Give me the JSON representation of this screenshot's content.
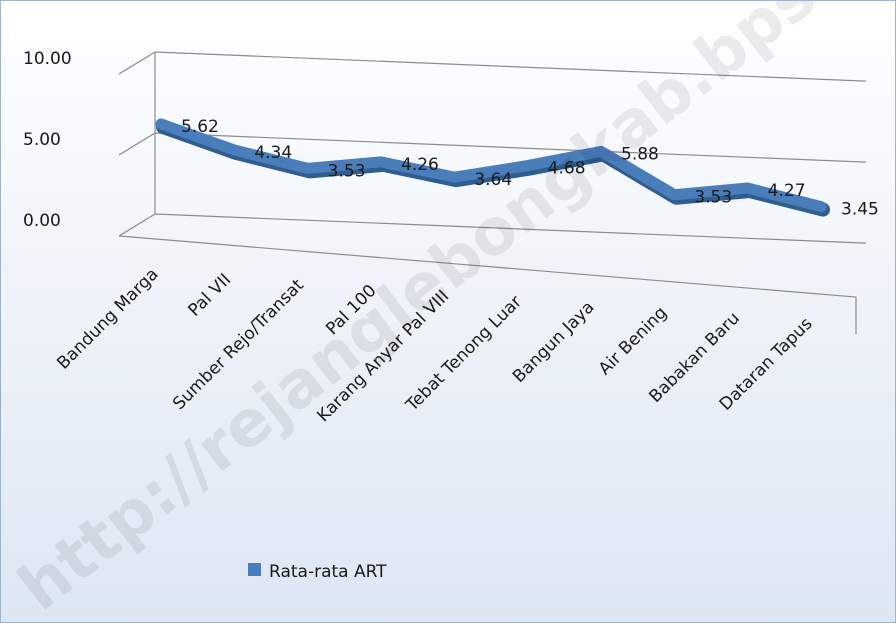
{
  "chart_data": {
    "type": "line",
    "title": "",
    "xlabel": "",
    "ylabel": "",
    "ylim": [
      0,
      10
    ],
    "y_ticks": [
      "0.00",
      "5.00",
      "10.00"
    ],
    "categories": [
      "Bandung Marga",
      "Pal VII",
      "Sumber Rejo/Transat",
      "Pal 100",
      "Karang Anyar Pal VIII",
      "Tebat Tenong Luar",
      "Bangun Jaya",
      "Air Bening",
      "Babakan Baru",
      "Dataran Tapus"
    ],
    "series": [
      {
        "name": "Rata-rata ART",
        "values": [
          5.62,
          4.34,
          3.53,
          4.26,
          3.64,
          4.68,
          5.88,
          3.53,
          4.27,
          3.45
        ],
        "labels": [
          "5.62",
          "4.34",
          "3.53",
          "4.26",
          "3.64",
          "4.68",
          "5.88",
          "3.53",
          "4.27",
          "3.45"
        ]
      }
    ],
    "legend_position": "bottom-left",
    "grid": true,
    "style": "3d-line"
  },
  "colors": {
    "background_top": "#ffffff",
    "background_bottom": "#dde6f3",
    "frame_border": "#9fb3c8",
    "line_fill": "#4a7ebb",
    "line_edge": "#2f5d8f",
    "grid_line": "#8c8c8c"
  },
  "watermark": "http://rejanglebongkab.bps.go.id"
}
